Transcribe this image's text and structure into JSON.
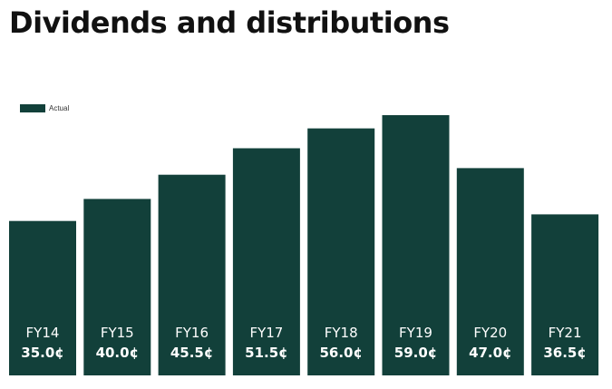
{
  "page_title": "Dividends and distributions",
  "chart_data": {
    "type": "bar",
    "title": "Dividends and distributions",
    "categories": [
      "FY14",
      "FY15",
      "FY16",
      "FY17",
      "FY18",
      "FY19",
      "FY20",
      "FY21"
    ],
    "series": [
      {
        "name": "Actual",
        "values": [
          35.0,
          40.0,
          45.5,
          51.5,
          56.0,
          59.0,
          47.0,
          36.5
        ],
        "value_labels": [
          "35.0¢",
          "40.0¢",
          "45.5¢",
          "51.5¢",
          "56.0¢",
          "59.0¢",
          "47.0¢",
          "36.5¢"
        ],
        "color": "#12403A"
      }
    ],
    "unit": "¢",
    "ylim": [
      0,
      59.0
    ],
    "grid": false,
    "legend": "top-left",
    "label_color": "#FFFFFF"
  }
}
